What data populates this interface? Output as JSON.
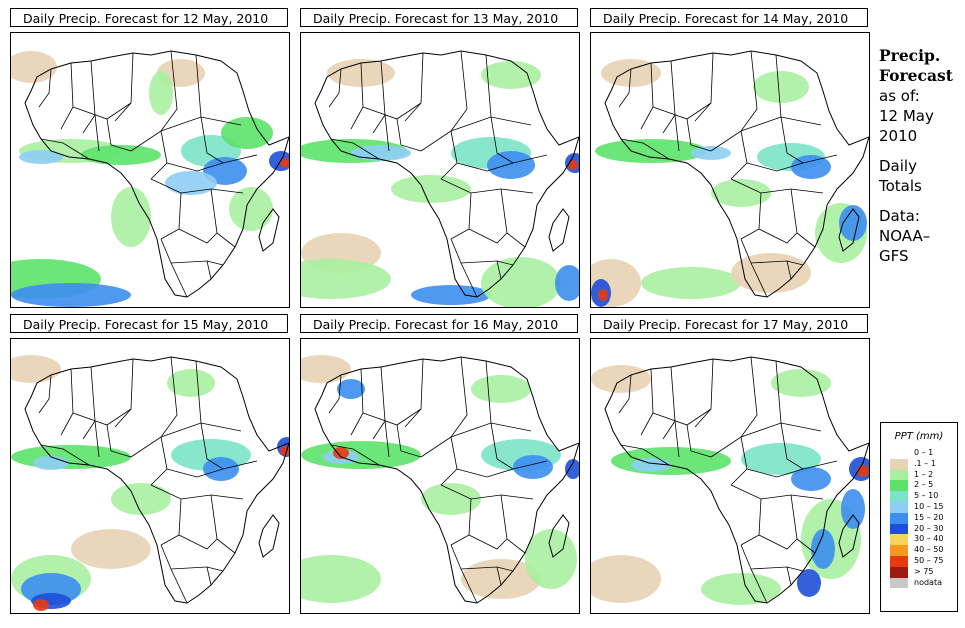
{
  "panels": [
    {
      "title": "Daily Precip. Forecast for  12 May, 2010"
    },
    {
      "title": "Daily Precip. Forecast for  13 May, 2010"
    },
    {
      "title": "Daily Precip. Forecast for  14 May, 2010"
    },
    {
      "title": "Daily Precip. Forecast for  15 May, 2010"
    },
    {
      "title": "Daily Precip. Forecast for  16 May, 2010"
    },
    {
      "title": "Daily Precip. Forecast for  17 May, 2010"
    }
  ],
  "sidebar": {
    "heading1": "Precip.",
    "heading2": "Forecast",
    "asof_label": "as of:",
    "asof_date1": "12 May",
    "asof_date2": "2010",
    "totals1": "Daily",
    "totals2": "Totals",
    "data1": "Data:",
    "data2": "NOAA–",
    "data3": "GFS"
  },
  "legend": {
    "title": "PPT (mm)",
    "items": [
      {
        "label": "0 – 1",
        "color": "#ffffff"
      },
      {
        "label": ".1 – 1",
        "color": "#e8d3b4"
      },
      {
        "label": "1 – 2",
        "color": "#a8f0a0"
      },
      {
        "label": "2 – 5",
        "color": "#5ce26a"
      },
      {
        "label": "5 – 10",
        "color": "#7be3c8"
      },
      {
        "label": "10 – 15",
        "color": "#8fcdf5"
      },
      {
        "label": "15 – 20",
        "color": "#3d8ef0"
      },
      {
        "label": "20 – 30",
        "color": "#1e4fd8"
      },
      {
        "label": "30 – 40",
        "color": "#f6d65a"
      },
      {
        "label": "40 – 50",
        "color": "#f59a1e"
      },
      {
        "label": "50 – 75",
        "color": "#e53a10"
      },
      {
        "label": "> 75",
        "color": "#9a1a0c"
      },
      {
        "label": "nodata",
        "color": "#c8c8c8"
      }
    ]
  }
}
